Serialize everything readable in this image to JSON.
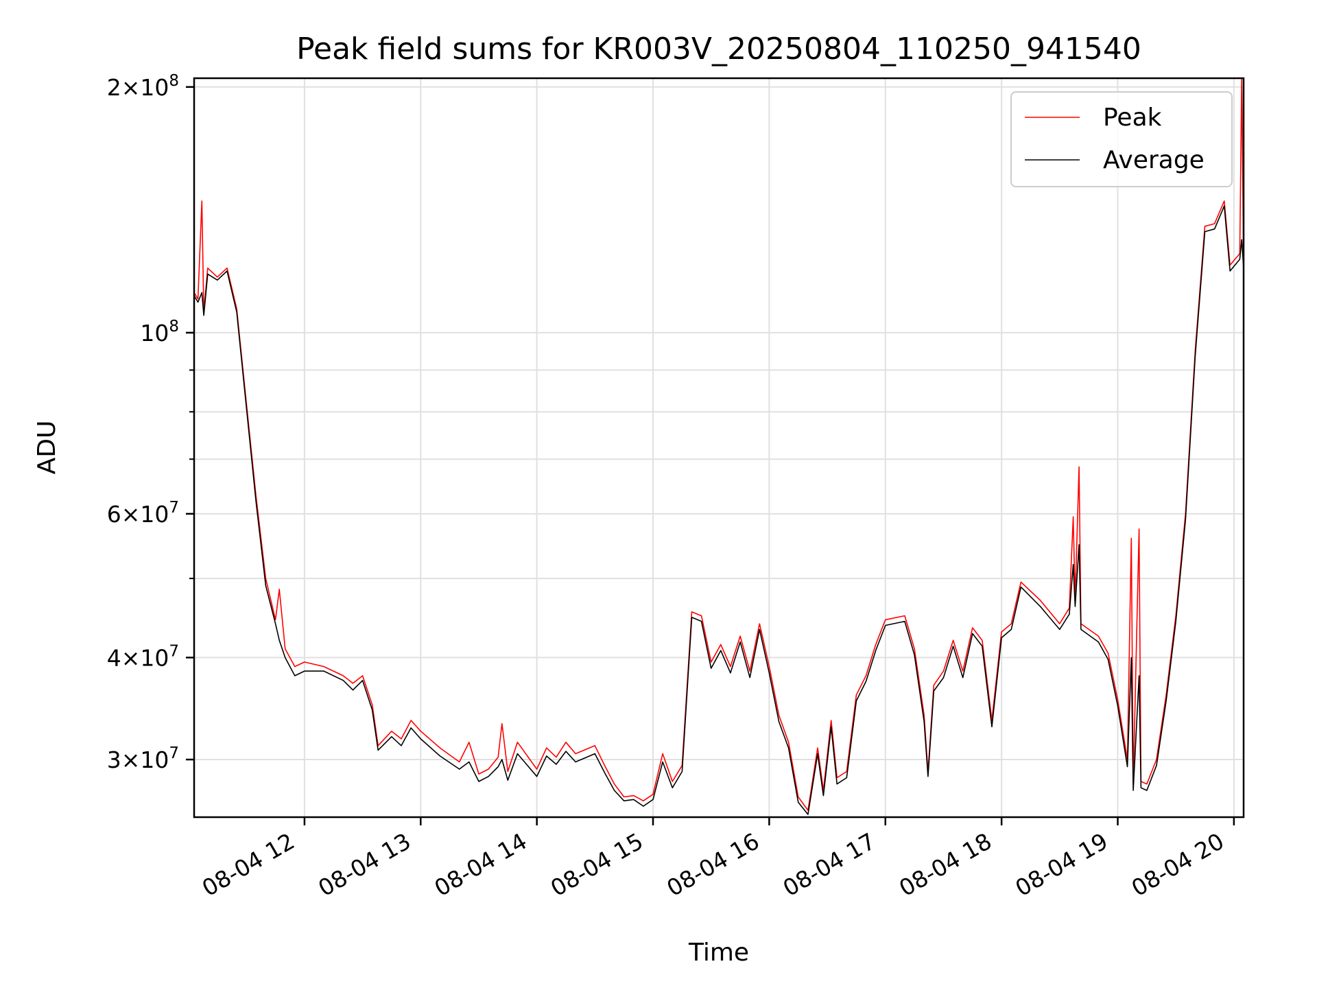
{
  "chart_data": {
    "type": "line",
    "title": "Peak field sums for KR003V_20250804_110250_941540",
    "xlabel": "Time",
    "ylabel": "ADU",
    "yscale": "log",
    "ylim": [
      25500000,
      205000000
    ],
    "xlim": [
      "2025-08-04 11:03",
      "2025-08-04 20:05"
    ],
    "grid": true,
    "legend_position": "top-right",
    "x_ticks": [
      {
        "t": "2025-08-04 12:00",
        "label": "08-04 12"
      },
      {
        "t": "2025-08-04 13:00",
        "label": "08-04 13"
      },
      {
        "t": "2025-08-04 14:00",
        "label": "08-04 14"
      },
      {
        "t": "2025-08-04 15:00",
        "label": "08-04 15"
      },
      {
        "t": "2025-08-04 16:00",
        "label": "08-04 16"
      },
      {
        "t": "2025-08-04 17:00",
        "label": "08-04 17"
      },
      {
        "t": "2025-08-04 18:00",
        "label": "08-04 18"
      },
      {
        "t": "2025-08-04 19:00",
        "label": "08-04 19"
      },
      {
        "t": "2025-08-04 20:00",
        "label": "08-04 20"
      }
    ],
    "y_ticks_major": [
      {
        "v": 30000000,
        "mant": "3",
        "exp": "7"
      },
      {
        "v": 40000000,
        "mant": "4",
        "exp": "7"
      },
      {
        "v": 60000000,
        "mant": "6",
        "exp": "7"
      },
      {
        "v": 100000000,
        "mant": "",
        "exp": "8"
      },
      {
        "v": 200000000,
        "mant": "2",
        "exp": "8"
      }
    ],
    "y_ticks_minor": [
      50000000,
      70000000,
      80000000,
      90000000
    ],
    "series": [
      {
        "name": "Peak",
        "color": "#ff0000",
        "points": [
          [
            "2025-08-04 11:03",
            112000000
          ],
          [
            "2025-08-04 11:05",
            110000000
          ],
          [
            "2025-08-04 11:07",
            145000000
          ],
          [
            "2025-08-04 11:08",
            106000000
          ],
          [
            "2025-08-04 11:10",
            120000000
          ],
          [
            "2025-08-04 11:15",
            117000000
          ],
          [
            "2025-08-04 11:20",
            120000000
          ],
          [
            "2025-08-04 11:25",
            107000000
          ],
          [
            "2025-08-04 11:30",
            82000000
          ],
          [
            "2025-08-04 11:35",
            63000000
          ],
          [
            "2025-08-04 11:40",
            50000000
          ],
          [
            "2025-08-04 11:45",
            44500000
          ],
          [
            "2025-08-04 11:47",
            48500000
          ],
          [
            "2025-08-04 11:50",
            41000000
          ],
          [
            "2025-08-04 11:55",
            39000000
          ],
          [
            "2025-08-04 12:00",
            39500000
          ],
          [
            "2025-08-04 12:10",
            39000000
          ],
          [
            "2025-08-04 12:20",
            38000000
          ],
          [
            "2025-08-04 12:25",
            37200000
          ],
          [
            "2025-08-04 12:30",
            38000000
          ],
          [
            "2025-08-04 12:35",
            35000000
          ],
          [
            "2025-08-04 12:38",
            31200000
          ],
          [
            "2025-08-04 12:45",
            32500000
          ],
          [
            "2025-08-04 12:50",
            31800000
          ],
          [
            "2025-08-04 12:55",
            33500000
          ],
          [
            "2025-08-04 13:00",
            32500000
          ],
          [
            "2025-08-04 13:10",
            31000000
          ],
          [
            "2025-08-04 13:20",
            29800000
          ],
          [
            "2025-08-04 13:25",
            31500000
          ],
          [
            "2025-08-04 13:30",
            28800000
          ],
          [
            "2025-08-04 13:35",
            29200000
          ],
          [
            "2025-08-04 13:40",
            30200000
          ],
          [
            "2025-08-04 13:42",
            33200000
          ],
          [
            "2025-08-04 13:45",
            29000000
          ],
          [
            "2025-08-04 13:50",
            31500000
          ],
          [
            "2025-08-04 14:00",
            29200000
          ],
          [
            "2025-08-04 14:05",
            31000000
          ],
          [
            "2025-08-04 14:10",
            30200000
          ],
          [
            "2025-08-04 14:15",
            31500000
          ],
          [
            "2025-08-04 14:20",
            30500000
          ],
          [
            "2025-08-04 14:30",
            31200000
          ],
          [
            "2025-08-04 14:35",
            29500000
          ],
          [
            "2025-08-04 14:40",
            28000000
          ],
          [
            "2025-08-04 14:45",
            27000000
          ],
          [
            "2025-08-04 14:50",
            27100000
          ],
          [
            "2025-08-04 14:55",
            26700000
          ],
          [
            "2025-08-04 15:00",
            27200000
          ],
          [
            "2025-08-04 15:05",
            30500000
          ],
          [
            "2025-08-04 15:10",
            28200000
          ],
          [
            "2025-08-04 15:15",
            29500000
          ],
          [
            "2025-08-04 15:20",
            45500000
          ],
          [
            "2025-08-04 15:25",
            45000000
          ],
          [
            "2025-08-04 15:30",
            39500000
          ],
          [
            "2025-08-04 15:35",
            41500000
          ],
          [
            "2025-08-04 15:40",
            39000000
          ],
          [
            "2025-08-04 15:45",
            42500000
          ],
          [
            "2025-08-04 15:50",
            38500000
          ],
          [
            "2025-08-04 15:55",
            44000000
          ],
          [
            "2025-08-04 16:00",
            39000000
          ],
          [
            "2025-08-04 16:05",
            34000000
          ],
          [
            "2025-08-04 16:10",
            31500000
          ],
          [
            "2025-08-04 16:15",
            27000000
          ],
          [
            "2025-08-04 16:20",
            26000000
          ],
          [
            "2025-08-04 16:25",
            31000000
          ],
          [
            "2025-08-04 16:28",
            27500000
          ],
          [
            "2025-08-04 16:32",
            33500000
          ],
          [
            "2025-08-04 16:35",
            28500000
          ],
          [
            "2025-08-04 16:40",
            29000000
          ],
          [
            "2025-08-04 16:45",
            36000000
          ],
          [
            "2025-08-04 16:50",
            38000000
          ],
          [
            "2025-08-04 16:55",
            41500000
          ],
          [
            "2025-08-04 17:00",
            44500000
          ],
          [
            "2025-08-04 17:10",
            45000000
          ],
          [
            "2025-08-04 17:15",
            41000000
          ],
          [
            "2025-08-04 17:20",
            34000000
          ],
          [
            "2025-08-04 17:22",
            29000000
          ],
          [
            "2025-08-04 17:25",
            37000000
          ],
          [
            "2025-08-04 17:30",
            38500000
          ],
          [
            "2025-08-04 17:35",
            42000000
          ],
          [
            "2025-08-04 17:40",
            38500000
          ],
          [
            "2025-08-04 17:45",
            43500000
          ],
          [
            "2025-08-04 17:50",
            42000000
          ],
          [
            "2025-08-04 17:55",
            33500000
          ],
          [
            "2025-08-04 18:00",
            43000000
          ],
          [
            "2025-08-04 18:05",
            44000000
          ],
          [
            "2025-08-04 18:10",
            49500000
          ],
          [
            "2025-08-04 18:20",
            47000000
          ],
          [
            "2025-08-04 18:30",
            44000000
          ],
          [
            "2025-08-04 18:35",
            46000000
          ],
          [
            "2025-08-04 18:37",
            59500000
          ],
          [
            "2025-08-04 18:38",
            47000000
          ],
          [
            "2025-08-04 18:40",
            68500000
          ],
          [
            "2025-08-04 18:41",
            44000000
          ],
          [
            "2025-08-04 18:50",
            42500000
          ],
          [
            "2025-08-04 18:55",
            40500000
          ],
          [
            "2025-08-04 19:00",
            35500000
          ],
          [
            "2025-08-04 19:05",
            30000000
          ],
          [
            "2025-08-04 19:07",
            56000000
          ],
          [
            "2025-08-04 19:08",
            28000000
          ],
          [
            "2025-08-04 19:11",
            57500000
          ],
          [
            "2025-08-04 19:12",
            28200000
          ],
          [
            "2025-08-04 19:15",
            28000000
          ],
          [
            "2025-08-04 19:20",
            30000000
          ],
          [
            "2025-08-04 19:25",
            36000000
          ],
          [
            "2025-08-04 19:30",
            45000000
          ],
          [
            "2025-08-04 19:35",
            60000000
          ],
          [
            "2025-08-04 19:40",
            95000000
          ],
          [
            "2025-08-04 19:45",
            135000000
          ],
          [
            "2025-08-04 19:50",
            136000000
          ],
          [
            "2025-08-04 19:55",
            145000000
          ],
          [
            "2025-08-04 19:58",
            121000000
          ],
          [
            "2025-08-04 20:03",
            125000000
          ],
          [
            "2025-08-04 20:04",
            205000000
          ],
          [
            "2025-08-04 20:05",
            122000000
          ]
        ]
      },
      {
        "name": "Average",
        "color": "#000000",
        "points": [
          [
            "2025-08-04 11:03",
            111000000
          ],
          [
            "2025-08-04 11:05",
            109000000
          ],
          [
            "2025-08-04 11:07",
            112000000
          ],
          [
            "2025-08-04 11:08",
            105000000
          ],
          [
            "2025-08-04 11:10",
            118000000
          ],
          [
            "2025-08-04 11:15",
            116000000
          ],
          [
            "2025-08-04 11:20",
            119000000
          ],
          [
            "2025-08-04 11:25",
            106000000
          ],
          [
            "2025-08-04 11:30",
            81000000
          ],
          [
            "2025-08-04 11:35",
            62000000
          ],
          [
            "2025-08-04 11:40",
            49000000
          ],
          [
            "2025-08-04 11:45",
            44000000
          ],
          [
            "2025-08-04 11:47",
            42000000
          ],
          [
            "2025-08-04 11:50",
            40000000
          ],
          [
            "2025-08-04 11:55",
            38000000
          ],
          [
            "2025-08-04 12:00",
            38500000
          ],
          [
            "2025-08-04 12:10",
            38500000
          ],
          [
            "2025-08-04 12:20",
            37500000
          ],
          [
            "2025-08-04 12:25",
            36500000
          ],
          [
            "2025-08-04 12:30",
            37500000
          ],
          [
            "2025-08-04 12:35",
            34500000
          ],
          [
            "2025-08-04 12:38",
            30800000
          ],
          [
            "2025-08-04 12:45",
            32000000
          ],
          [
            "2025-08-04 12:50",
            31200000
          ],
          [
            "2025-08-04 12:55",
            32800000
          ],
          [
            "2025-08-04 13:00",
            31800000
          ],
          [
            "2025-08-04 13:10",
            30300000
          ],
          [
            "2025-08-04 13:20",
            29200000
          ],
          [
            "2025-08-04 13:25",
            29800000
          ],
          [
            "2025-08-04 13:30",
            28200000
          ],
          [
            "2025-08-04 13:35",
            28600000
          ],
          [
            "2025-08-04 13:40",
            29400000
          ],
          [
            "2025-08-04 13:42",
            30000000
          ],
          [
            "2025-08-04 13:45",
            28300000
          ],
          [
            "2025-08-04 13:50",
            30500000
          ],
          [
            "2025-08-04 14:00",
            28600000
          ],
          [
            "2025-08-04 14:05",
            30300000
          ],
          [
            "2025-08-04 14:10",
            29600000
          ],
          [
            "2025-08-04 14:15",
            30700000
          ],
          [
            "2025-08-04 14:20",
            29800000
          ],
          [
            "2025-08-04 14:30",
            30500000
          ],
          [
            "2025-08-04 14:35",
            28900000
          ],
          [
            "2025-08-04 14:40",
            27500000
          ],
          [
            "2025-08-04 14:45",
            26700000
          ],
          [
            "2025-08-04 14:50",
            26800000
          ],
          [
            "2025-08-04 14:55",
            26300000
          ],
          [
            "2025-08-04 15:00",
            26800000
          ],
          [
            "2025-08-04 15:05",
            29800000
          ],
          [
            "2025-08-04 15:10",
            27700000
          ],
          [
            "2025-08-04 15:15",
            29000000
          ],
          [
            "2025-08-04 15:20",
            44800000
          ],
          [
            "2025-08-04 15:25",
            44300000
          ],
          [
            "2025-08-04 15:30",
            38800000
          ],
          [
            "2025-08-04 15:35",
            40800000
          ],
          [
            "2025-08-04 15:40",
            38300000
          ],
          [
            "2025-08-04 15:45",
            41800000
          ],
          [
            "2025-08-04 15:50",
            37800000
          ],
          [
            "2025-08-04 15:55",
            43300000
          ],
          [
            "2025-08-04 16:00",
            38300000
          ],
          [
            "2025-08-04 16:05",
            33400000
          ],
          [
            "2025-08-04 16:10",
            31000000
          ],
          [
            "2025-08-04 16:15",
            26600000
          ],
          [
            "2025-08-04 16:20",
            25700000
          ],
          [
            "2025-08-04 16:25",
            30500000
          ],
          [
            "2025-08-04 16:28",
            27100000
          ],
          [
            "2025-08-04 16:32",
            32900000
          ],
          [
            "2025-08-04 16:35",
            28000000
          ],
          [
            "2025-08-04 16:40",
            28500000
          ],
          [
            "2025-08-04 16:45",
            35400000
          ],
          [
            "2025-08-04 16:50",
            37400000
          ],
          [
            "2025-08-04 16:55",
            40800000
          ],
          [
            "2025-08-04 17:00",
            43800000
          ],
          [
            "2025-08-04 17:10",
            44300000
          ],
          [
            "2025-08-04 17:15",
            40300000
          ],
          [
            "2025-08-04 17:20",
            33400000
          ],
          [
            "2025-08-04 17:22",
            28600000
          ],
          [
            "2025-08-04 17:25",
            36400000
          ],
          [
            "2025-08-04 17:30",
            37800000
          ],
          [
            "2025-08-04 17:35",
            41300000
          ],
          [
            "2025-08-04 17:40",
            37800000
          ],
          [
            "2025-08-04 17:45",
            42800000
          ],
          [
            "2025-08-04 17:50",
            41300000
          ],
          [
            "2025-08-04 17:55",
            32900000
          ],
          [
            "2025-08-04 18:00",
            42300000
          ],
          [
            "2025-08-04 18:05",
            43300000
          ],
          [
            "2025-08-04 18:10",
            48800000
          ],
          [
            "2025-08-04 18:20",
            46200000
          ],
          [
            "2025-08-04 18:30",
            43300000
          ],
          [
            "2025-08-04 18:35",
            45200000
          ],
          [
            "2025-08-04 18:37",
            52000000
          ],
          [
            "2025-08-04 18:38",
            46200000
          ],
          [
            "2025-08-04 18:40",
            55000000
          ],
          [
            "2025-08-04 18:41",
            43300000
          ],
          [
            "2025-08-04 18:50",
            41800000
          ],
          [
            "2025-08-04 18:55",
            39800000
          ],
          [
            "2025-08-04 19:00",
            34900000
          ],
          [
            "2025-08-04 19:05",
            29400000
          ],
          [
            "2025-08-04 19:07",
            40000000
          ],
          [
            "2025-08-04 19:08",
            27500000
          ],
          [
            "2025-08-04 19:11",
            38000000
          ],
          [
            "2025-08-04 19:12",
            27700000
          ],
          [
            "2025-08-04 19:15",
            27500000
          ],
          [
            "2025-08-04 19:20",
            29500000
          ],
          [
            "2025-08-04 19:25",
            35400000
          ],
          [
            "2025-08-04 19:30",
            44300000
          ],
          [
            "2025-08-04 19:35",
            59000000
          ],
          [
            "2025-08-04 19:40",
            93500000
          ],
          [
            "2025-08-04 19:45",
            133000000
          ],
          [
            "2025-08-04 19:50",
            134000000
          ],
          [
            "2025-08-04 19:55",
            143000000
          ],
          [
            "2025-08-04 19:58",
            119000000
          ],
          [
            "2025-08-04 20:03",
            123000000
          ],
          [
            "2025-08-04 20:04",
            130000000
          ],
          [
            "2025-08-04 20:05",
            120000000
          ]
        ]
      }
    ]
  }
}
